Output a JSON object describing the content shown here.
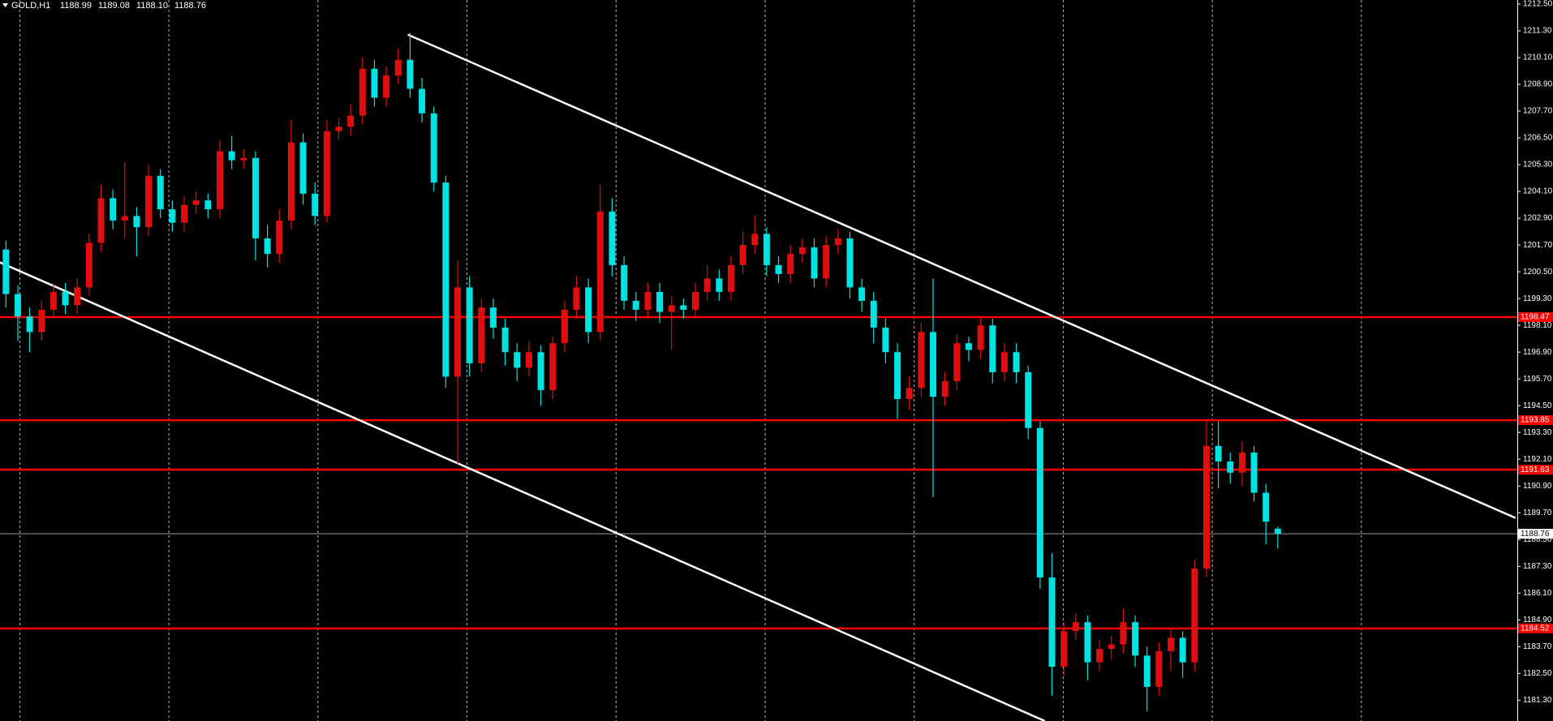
{
  "chart_data": {
    "type": "candlestick",
    "header": {
      "symbol": "GOLD,H1",
      "values": [
        "1188.99",
        "1189.08",
        "1188.10",
        "1188.76"
      ]
    },
    "open": [
      1201.5,
      1199.5,
      1198.5,
      1197.8,
      1198.8,
      1199.6,
      1199.0,
      1199.8,
      1201.8,
      1203.8,
      1202.8,
      1203.0,
      1202.5,
      1204.8,
      1203.3,
      1202.7,
      1203.5,
      1203.7,
      1203.3,
      1205.9,
      1205.5,
      1205.6,
      1202.0,
      1201.3,
      1202.8,
      1206.3,
      1204.0,
      1203.0,
      1206.8,
      1207.0,
      1207.5,
      1209.6,
      1208.3,
      1209.3,
      1210.0,
      1208.7,
      1207.6,
      1204.5,
      1195.8,
      1199.8,
      1196.4,
      1198.9,
      1198.0,
      1196.9,
      1196.2,
      1196.9,
      1195.2,
      1197.3,
      1198.8,
      1199.8,
      1197.8,
      1203.2,
      1200.8,
      1199.2,
      1198.8,
      1199.6,
      1198.7,
      1199.0,
      1198.8,
      1199.6,
      1200.2,
      1199.6,
      1200.8,
      1201.7,
      1202.2,
      1200.8,
      1200.4,
      1201.3,
      1201.6,
      1200.2,
      1201.7,
      1202.0,
      1199.8,
      1199.2,
      1198.0,
      1196.9,
      1194.8,
      1195.3,
      1197.8,
      1194.9,
      1195.6,
      1197.3,
      1197.0,
      1198.1,
      1196.0,
      1196.9,
      1196.0,
      1193.5,
      1186.8,
      1182.8,
      1184.4,
      1184.8,
      1183.0,
      1183.6,
      1183.8,
      1184.8,
      1183.3,
      1181.9,
      1183.5,
      1184.1,
      1183.0,
      1187.2,
      1192.7,
      1192.0,
      1191.5,
      1192.4,
      1190.6,
      1188.99
    ],
    "high": [
      1201.9,
      1199.9,
      1198.9,
      1199.2,
      1200.0,
      1200.0,
      1200.2,
      1202.2,
      1204.4,
      1204.2,
      1205.4,
      1203.4,
      1205.3,
      1205.1,
      1203.7,
      1203.9,
      1204.1,
      1204.0,
      1206.4,
      1206.6,
      1206.0,
      1205.9,
      1202.6,
      1203.3,
      1207.3,
      1206.7,
      1204.5,
      1207.3,
      1207.4,
      1208.0,
      1210.1,
      1210.0,
      1209.7,
      1210.5,
      1211.2,
      1209.2,
      1207.9,
      1204.8,
      1201.0,
      1200.3,
      1199.3,
      1199.3,
      1198.4,
      1197.3,
      1197.4,
      1197.2,
      1197.6,
      1199.2,
      1200.3,
      1200.2,
      1204.4,
      1203.8,
      1201.2,
      1199.6,
      1200.0,
      1200.0,
      1199.4,
      1199.3,
      1200.0,
      1200.8,
      1200.6,
      1201.2,
      1202.3,
      1203.0,
      1202.5,
      1201.2,
      1201.7,
      1202.0,
      1202.0,
      1202.1,
      1202.4,
      1202.3,
      1200.2,
      1199.6,
      1198.4,
      1197.3,
      1195.8,
      1198.2,
      1200.2,
      1196.0,
      1197.7,
      1197.6,
      1198.5,
      1198.4,
      1197.3,
      1197.3,
      1196.3,
      1193.8,
      1187.9,
      1184.8,
      1185.2,
      1185.1,
      1184.0,
      1184.2,
      1185.4,
      1185.1,
      1183.7,
      1183.9,
      1184.5,
      1184.4,
      1187.6,
      1193.9,
      1193.8,
      1192.4,
      1192.9,
      1192.7,
      1191.0,
      1189.08
    ],
    "low": [
      1198.9,
      1197.4,
      1196.9,
      1197.4,
      1198.4,
      1198.6,
      1198.6,
      1199.4,
      1201.4,
      1202.4,
      1202.0,
      1201.2,
      1202.1,
      1202.9,
      1202.3,
      1202.3,
      1203.1,
      1202.9,
      1202.9,
      1205.1,
      1205.1,
      1201.0,
      1200.7,
      1200.9,
      1202.4,
      1203.5,
      1202.6,
      1202.7,
      1206.4,
      1206.6,
      1207.1,
      1207.9,
      1207.9,
      1208.9,
      1208.3,
      1207.2,
      1204.1,
      1195.3,
      1191.9,
      1195.8,
      1196.0,
      1197.5,
      1196.3,
      1195.6,
      1195.8,
      1194.5,
      1194.8,
      1196.9,
      1198.4,
      1197.3,
      1197.4,
      1200.3,
      1198.8,
      1198.3,
      1198.4,
      1198.2,
      1197.0,
      1198.4,
      1198.4,
      1199.2,
      1199.2,
      1199.2,
      1200.4,
      1201.3,
      1200.3,
      1200.0,
      1200.0,
      1200.9,
      1199.8,
      1199.8,
      1201.3,
      1199.3,
      1198.7,
      1197.3,
      1196.4,
      1193.9,
      1194.3,
      1194.9,
      1190.4,
      1194.5,
      1195.2,
      1196.5,
      1196.6,
      1195.5,
      1195.6,
      1195.5,
      1193.0,
      1186.3,
      1181.5,
      1182.4,
      1184.0,
      1182.2,
      1182.6,
      1183.1,
      1183.4,
      1182.8,
      1180.8,
      1181.5,
      1182.6,
      1182.3,
      1182.6,
      1186.8,
      1190.8,
      1191.0,
      1190.9,
      1190.2,
      1188.3,
      1188.1
    ],
    "close": [
      1199.5,
      1198.5,
      1197.8,
      1198.8,
      1199.6,
      1199.0,
      1199.8,
      1201.8,
      1203.8,
      1202.8,
      1203.0,
      1202.5,
      1204.8,
      1203.3,
      1202.7,
      1203.5,
      1203.7,
      1203.3,
      1205.9,
      1205.5,
      1205.6,
      1202.0,
      1201.3,
      1202.8,
      1206.3,
      1204.0,
      1203.0,
      1206.8,
      1207.0,
      1207.5,
      1209.6,
      1208.3,
      1209.3,
      1210.0,
      1208.7,
      1207.6,
      1204.5,
      1195.8,
      1199.8,
      1196.4,
      1198.9,
      1198.0,
      1196.9,
      1196.2,
      1196.9,
      1195.2,
      1197.3,
      1198.8,
      1199.8,
      1197.8,
      1203.2,
      1200.8,
      1199.2,
      1198.8,
      1199.6,
      1198.7,
      1199.0,
      1198.8,
      1199.6,
      1200.2,
      1199.6,
      1200.8,
      1201.7,
      1202.2,
      1200.8,
      1200.4,
      1201.3,
      1201.6,
      1200.2,
      1201.7,
      1202.0,
      1199.8,
      1199.2,
      1198.0,
      1196.9,
      1194.8,
      1195.3,
      1197.8,
      1194.9,
      1195.6,
      1197.3,
      1197.0,
      1198.1,
      1196.0,
      1196.9,
      1196.0,
      1193.5,
      1186.8,
      1182.8,
      1184.4,
      1184.8,
      1183.0,
      1183.6,
      1183.8,
      1184.8,
      1183.3,
      1181.9,
      1183.5,
      1184.1,
      1183.0,
      1187.2,
      1192.7,
      1192.0,
      1191.5,
      1192.4,
      1190.6,
      1189.3,
      1188.76
    ],
    "up_color": "#e00e0e",
    "down_color": "#00e3e3",
    "ylim": [
      1180.37,
      1212.68
    ],
    "yticks": [
      {
        "value": 1212.5,
        "label": "1212.50"
      },
      {
        "value": 1211.3,
        "label": "1211.30"
      },
      {
        "value": 1210.1,
        "label": "1210.10"
      },
      {
        "value": 1208.9,
        "label": "1208.90"
      },
      {
        "value": 1207.7,
        "label": "1207.70"
      },
      {
        "value": 1206.5,
        "label": "1206.50"
      },
      {
        "value": 1205.3,
        "label": "1205.30"
      },
      {
        "value": 1204.1,
        "label": "1204.10"
      },
      {
        "value": 1202.9,
        "label": "1202.90"
      },
      {
        "value": 1201.7,
        "label": "1201.70"
      },
      {
        "value": 1200.5,
        "label": "1200.50"
      },
      {
        "value": 1199.3,
        "label": "1199.30"
      },
      {
        "value": 1198.1,
        "label": "1198.10"
      },
      {
        "value": 1196.9,
        "label": "1196.90"
      },
      {
        "value": 1195.7,
        "label": "1195.70"
      },
      {
        "value": 1194.5,
        "label": "1194.50"
      },
      {
        "value": 1193.3,
        "label": "1193.30"
      },
      {
        "value": 1192.1,
        "label": "1192.10"
      },
      {
        "value": 1190.9,
        "label": "1190.90"
      },
      {
        "value": 1189.7,
        "label": "1189.70"
      },
      {
        "value": 1188.5,
        "label": "1188.50"
      },
      {
        "value": 1187.3,
        "label": "1187.30"
      },
      {
        "value": 1186.1,
        "label": "1186.10"
      },
      {
        "value": 1184.9,
        "label": "1184.90"
      },
      {
        "value": 1183.7,
        "label": "1183.70"
      },
      {
        "value": 1182.5,
        "label": "1182.50"
      },
      {
        "value": 1181.3,
        "label": "1181.30"
      }
    ],
    "levels": [
      {
        "value": 1198.47,
        "label": "1198.47"
      },
      {
        "value": 1193.85,
        "label": "1193.85"
      },
      {
        "value": 1191.63,
        "label": "1191.63"
      },
      {
        "value": 1184.52,
        "label": "1184.52"
      }
    ],
    "level_color": "#ff0000",
    "last_price": {
      "value": 1188.76,
      "label": "1188.76"
    },
    "trendlines": [
      {
        "x": [
          33.8,
          127
        ],
        "y": [
          1211.13,
          1189.47
        ]
      },
      {
        "x": [
          -0.5,
          87.4
        ],
        "y": [
          1200.92,
          1180.37
        ]
      }
    ],
    "trendline_color": "#ffffff"
  }
}
